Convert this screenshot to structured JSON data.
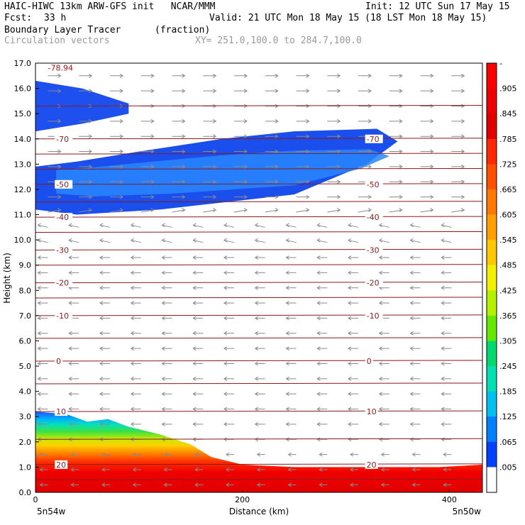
{
  "header": {
    "line1_left": "HAIC-HIWC 13km ARW-GFS init   NCAR/MMM",
    "line1_right": "Init: 12 UTC Sun 17 May 15",
    "fcst_label": "Fcst:",
    "fcst_value": "33 h",
    "valid": "Valid: 21 UTC Mon 18 May 15 (18 LST Mon 18 May 15)",
    "field_name": "Boundary Layer Tracer",
    "field_units": "(fraction)",
    "vector_name": "Circulation vectors",
    "xy": "XY= 251.0,100.0 to 284.7,100.0"
  },
  "colors": {
    "isotherm": "#8b1a1a",
    "vector": "#8a8a8a",
    "palette": [
      "#ffffff",
      "#1040ee",
      "#2060ff",
      "#1fa0ff",
      "#00d8f0",
      "#00e0a0",
      "#30e060",
      "#9ae030",
      "#e8f000",
      "#ffd000",
      "#ffa000",
      "#ff7000",
      "#ff3000",
      "#f50000",
      "#e00000"
    ]
  },
  "chart_data": {
    "type": "cross-section",
    "xlabel": "Distance (km)",
    "ylabel": "Height (km)",
    "xlim": [
      0,
      432
    ],
    "ylim": [
      0,
      17
    ],
    "x_ticks": [
      "0",
      "200",
      "400"
    ],
    "x_tick_values": [
      0,
      200,
      400
    ],
    "y_ticks": [
      "0.0",
      "1.0",
      "2.0",
      "3.0",
      "4.0",
      "5.0",
      "6.0",
      "7.0",
      "8.0",
      "9.0",
      "10.0",
      "11.0",
      "12.0",
      "13.0",
      "14.0",
      "15.0",
      "16.0",
      "17.0"
    ],
    "left_endpoint": "5n54w",
    "right_endpoint": "5n50w",
    "colorbar": {
      "labels": [
        "-",
        ".905",
        ".845",
        ".785",
        ".725",
        ".665",
        ".605",
        ".545",
        ".485",
        ".425",
        ".365",
        ".305",
        ".245",
        ".185",
        ".125",
        ".065",
        ".005"
      ],
      "colors": [
        "#ff0000",
        "#ee0000",
        "#e00000",
        "#ff2800",
        "#ff5000",
        "#ff7800",
        "#ffa000",
        "#ffc800",
        "#f0f000",
        "#b4f000",
        "#64e800",
        "#00d870",
        "#00e0b0",
        "#00c0f0",
        "#0080ff",
        "#0040ff",
        "#ffffff"
      ]
    },
    "isotherm_levels": [
      {
        "height": 0.5,
        "label": ""
      },
      {
        "height": 1.1,
        "label": "20"
      },
      {
        "height": 2.1,
        "label": ""
      },
      {
        "height": 3.2,
        "label": "10"
      },
      {
        "height": 4.3,
        "label": ""
      },
      {
        "height": 5.2,
        "label": "0"
      },
      {
        "height": 6.1,
        "label": ""
      },
      {
        "height": 7.0,
        "label": "-10"
      },
      {
        "height": 7.7,
        "label": ""
      },
      {
        "height": 8.3,
        "label": "-20"
      },
      {
        "height": 9.0,
        "label": ""
      },
      {
        "height": 9.6,
        "label": "-30"
      },
      {
        "height": 10.3,
        "label": ""
      },
      {
        "height": 10.9,
        "label": "-40"
      },
      {
        "height": 11.5,
        "label": ""
      },
      {
        "height": 12.2,
        "label": "-50"
      },
      {
        "height": 12.8,
        "label": ""
      },
      {
        "height": 13.4,
        "label": ""
      },
      {
        "height": 14.0,
        "label": "-70"
      },
      {
        "height": 15.3,
        "label": ""
      }
    ],
    "min_label": "-78.94",
    "cloud_upper": [
      [
        0,
        16.3
      ],
      [
        45,
        16.0
      ],
      [
        90,
        15.4
      ],
      [
        90,
        15.0
      ],
      [
        45,
        14.6
      ],
      [
        0,
        14.3
      ]
    ],
    "cloud_middle": [
      [
        0,
        11.2
      ],
      [
        40,
        11.0
      ],
      [
        120,
        11.2
      ],
      [
        250,
        11.8
      ],
      [
        320,
        13.0
      ],
      [
        350,
        13.9
      ],
      [
        330,
        14.4
      ],
      [
        250,
        14.3
      ],
      [
        180,
        14.0
      ],
      [
        100,
        13.5
      ],
      [
        40,
        13.1
      ],
      [
        0,
        12.9
      ]
    ],
    "tracer_top": [
      [
        0,
        3.2
      ],
      [
        30,
        3.1
      ],
      [
        50,
        2.8
      ],
      [
        70,
        2.9
      ],
      [
        90,
        2.6
      ],
      [
        120,
        2.3
      ],
      [
        150,
        1.9
      ],
      [
        170,
        1.4
      ],
      [
        200,
        1.1
      ],
      [
        250,
        1.0
      ],
      [
        300,
        1.0
      ],
      [
        350,
        1.0
      ],
      [
        390,
        1.0
      ],
      [
        432,
        1.1
      ]
    ]
  }
}
